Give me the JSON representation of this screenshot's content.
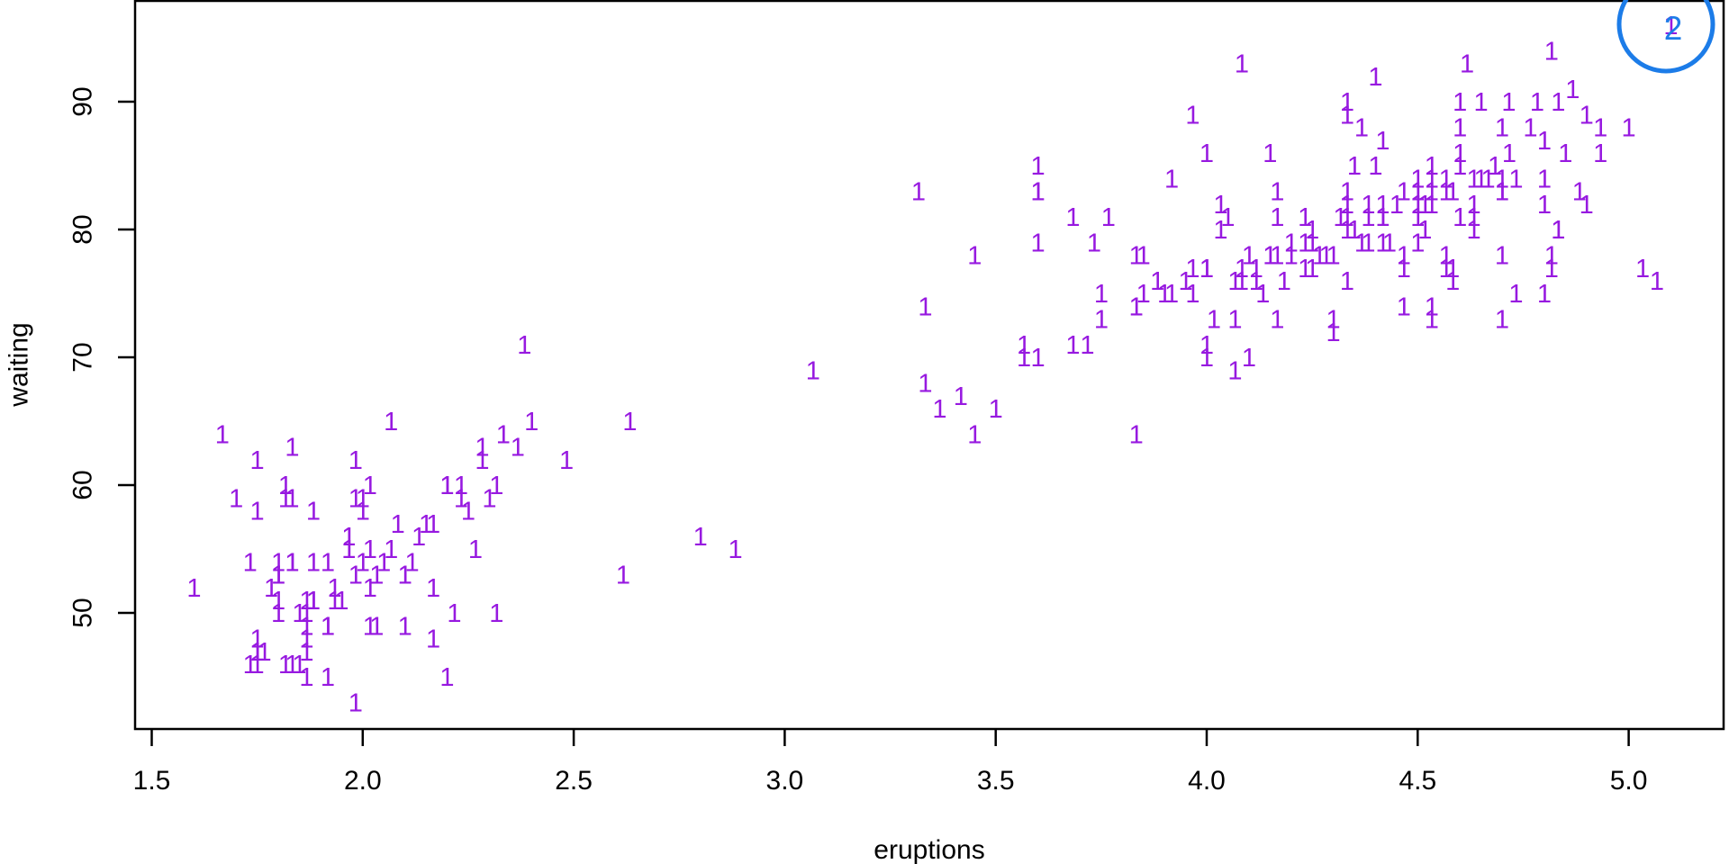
{
  "chart_data": {
    "type": "scatter",
    "title": "",
    "xlabel": "eruptions",
    "ylabel": "waiting",
    "x_ticks": [
      1.5,
      2.0,
      2.5,
      3.0,
      3.5,
      4.0,
      4.5,
      5.0
    ],
    "x_tick_labels": [
      "1.5",
      "2.0",
      "2.5",
      "3.0",
      "3.5",
      "4.0",
      "4.5",
      "5.0"
    ],
    "y_ticks": [
      50,
      60,
      70,
      80,
      90
    ],
    "y_tick_labels": [
      "50",
      "60",
      "70",
      "80",
      "90"
    ],
    "xlim": [
      1.46,
      5.23
    ],
    "ylim": [
      40.9,
      98.1
    ],
    "grid": "off",
    "legend": "none",
    "point_glyph": "1",
    "point_color": "#9719E0",
    "axis_color": "#000000",
    "points": [
      [
        3.6,
        79
      ],
      [
        1.8,
        54
      ],
      [
        3.333,
        74
      ],
      [
        2.283,
        62
      ],
      [
        4.533,
        85
      ],
      [
        2.883,
        55
      ],
      [
        4.7,
        88
      ],
      [
        3.6,
        85
      ],
      [
        1.95,
        51
      ],
      [
        4.35,
        85
      ],
      [
        1.833,
        54
      ],
      [
        3.917,
        84
      ],
      [
        4.2,
        78
      ],
      [
        1.75,
        47
      ],
      [
        4.7,
        83
      ],
      [
        2.167,
        52
      ],
      [
        1.75,
        62
      ],
      [
        4.8,
        84
      ],
      [
        1.6,
        52
      ],
      [
        4.25,
        79
      ],
      [
        1.8,
        51
      ],
      [
        1.75,
        47
      ],
      [
        3.45,
        78
      ],
      [
        3.067,
        69
      ],
      [
        4.533,
        74
      ],
      [
        3.6,
        83
      ],
      [
        1.967,
        55
      ],
      [
        4.083,
        76
      ],
      [
        3.85,
        78
      ],
      [
        4.433,
        79
      ],
      [
        4.3,
        73
      ],
      [
        4.467,
        77
      ],
      [
        3.367,
        66
      ],
      [
        4.033,
        80
      ],
      [
        3.833,
        74
      ],
      [
        2.017,
        52
      ],
      [
        1.867,
        48
      ],
      [
        4.833,
        80
      ],
      [
        1.833,
        59
      ],
      [
        4.783,
        90
      ],
      [
        4.35,
        80
      ],
      [
        1.883,
        58
      ],
      [
        4.567,
        84
      ],
      [
        1.75,
        58
      ],
      [
        4.533,
        73
      ],
      [
        3.317,
        83
      ],
      [
        3.833,
        64
      ],
      [
        2.1,
        53
      ],
      [
        4.633,
        82
      ],
      [
        2.0,
        59
      ],
      [
        4.8,
        75
      ],
      [
        4.716,
        90
      ],
      [
        1.833,
        54
      ],
      [
        4.833,
        80
      ],
      [
        1.733,
        54
      ],
      [
        4.883,
        83
      ],
      [
        3.717,
        71
      ],
      [
        1.667,
        64
      ],
      [
        4.567,
        77
      ],
      [
        4.317,
        81
      ],
      [
        2.233,
        59
      ],
      [
        4.5,
        84
      ],
      [
        1.75,
        48
      ],
      [
        4.8,
        82
      ],
      [
        1.817,
        60
      ],
      [
        4.4,
        92
      ],
      [
        4.167,
        78
      ],
      [
        4.7,
        78
      ],
      [
        2.067,
        65
      ],
      [
        4.7,
        73
      ],
      [
        4.033,
        82
      ],
      [
        1.967,
        56
      ],
      [
        4.5,
        79
      ],
      [
        4.0,
        71
      ],
      [
        1.983,
        62
      ],
      [
        5.067,
        76
      ],
      [
        2.017,
        60
      ],
      [
        4.567,
        78
      ],
      [
        3.883,
        76
      ],
      [
        3.6,
        83
      ],
      [
        4.133,
        75
      ],
      [
        4.333,
        82
      ],
      [
        4.1,
        70
      ],
      [
        2.633,
        65
      ],
      [
        4.067,
        73
      ],
      [
        4.933,
        88
      ],
      [
        3.95,
        76
      ],
      [
        4.517,
        80
      ],
      [
        2.167,
        48
      ],
      [
        4.0,
        86
      ],
      [
        2.2,
        60
      ],
      [
        4.333,
        90
      ],
      [
        1.867,
        50
      ],
      [
        4.817,
        78
      ],
      [
        1.833,
        63
      ],
      [
        4.3,
        72
      ],
      [
        4.667,
        84
      ],
      [
        3.75,
        75
      ],
      [
        1.867,
        51
      ],
      [
        4.9,
        82
      ],
      [
        2.483,
        62
      ],
      [
        4.367,
        88
      ],
      [
        2.1,
        49
      ],
      [
        4.5,
        83
      ],
      [
        4.05,
        81
      ],
      [
        1.867,
        47
      ],
      [
        4.7,
        84
      ],
      [
        1.783,
        52
      ],
      [
        4.85,
        86
      ],
      [
        3.683,
        81
      ],
      [
        4.733,
        75
      ],
      [
        2.3,
        59
      ],
      [
        4.9,
        89
      ],
      [
        4.417,
        79
      ],
      [
        1.7,
        59
      ],
      [
        4.633,
        81
      ],
      [
        2.317,
        50
      ],
      [
        4.6,
        85
      ],
      [
        1.817,
        59
      ],
      [
        4.417,
        87
      ],
      [
        2.617,
        53
      ],
      [
        4.067,
        69
      ],
      [
        4.25,
        77
      ],
      [
        1.967,
        56
      ],
      [
        4.6,
        88
      ],
      [
        3.767,
        81
      ],
      [
        1.917,
        45
      ],
      [
        4.5,
        82
      ],
      [
        2.267,
        55
      ],
      [
        4.65,
        90
      ],
      [
        1.867,
        45
      ],
      [
        4.167,
        83
      ],
      [
        2.8,
        56
      ],
      [
        4.333,
        89
      ],
      [
        1.833,
        46
      ],
      [
        4.383,
        82
      ],
      [
        1.883,
        51
      ],
      [
        4.933,
        86
      ],
      [
        2.033,
        53
      ],
      [
        3.733,
        79
      ],
      [
        4.233,
        81
      ],
      [
        2.233,
        60
      ],
      [
        4.533,
        82
      ],
      [
        4.817,
        77
      ],
      [
        4.333,
        76
      ],
      [
        1.983,
        59
      ],
      [
        4.633,
        80
      ],
      [
        2.017,
        49
      ],
      [
        5.1,
        96
      ],
      [
        1.8,
        53
      ],
      [
        5.033,
        77
      ],
      [
        4.0,
        77
      ],
      [
        2.4,
        65
      ],
      [
        4.6,
        81
      ],
      [
        3.567,
        71
      ],
      [
        4.0,
        70
      ],
      [
        4.5,
        81
      ],
      [
        4.083,
        93
      ],
      [
        1.8,
        53
      ],
      [
        3.967,
        89
      ],
      [
        2.2,
        45
      ],
      [
        4.15,
        86
      ],
      [
        2.0,
        58
      ],
      [
        3.833,
        78
      ],
      [
        3.5,
        66
      ],
      [
        4.583,
        76
      ],
      [
        2.367,
        63
      ],
      [
        5.0,
        88
      ],
      [
        1.933,
        52
      ],
      [
        4.617,
        93
      ],
      [
        1.917,
        49
      ],
      [
        2.083,
        57
      ],
      [
        4.583,
        77
      ],
      [
        3.333,
        68
      ],
      [
        4.167,
        81
      ],
      [
        4.333,
        81
      ],
      [
        4.167,
        73
      ],
      [
        2.217,
        50
      ],
      [
        4.4,
        85
      ],
      [
        1.867,
        49
      ],
      [
        2.017,
        55
      ],
      [
        4.233,
        77
      ],
      [
        4.333,
        83
      ],
      [
        4.533,
        83
      ],
      [
        1.883,
        51
      ],
      [
        4.267,
        78
      ],
      [
        4.533,
        84
      ],
      [
        1.75,
        46
      ],
      [
        4.7,
        83
      ],
      [
        2.067,
        55
      ],
      [
        4.383,
        81
      ],
      [
        2.167,
        57
      ],
      [
        4.117,
        76
      ],
      [
        4.733,
        84
      ],
      [
        4.0,
        77
      ],
      [
        4.417,
        81
      ],
      [
        4.8,
        87
      ],
      [
        3.967,
        77
      ],
      [
        1.933,
        51
      ],
      [
        4.15,
        78
      ],
      [
        2.2,
        60
      ],
      [
        4.5,
        82
      ],
      [
        4.867,
        91
      ],
      [
        1.983,
        53
      ],
      [
        4.283,
        78
      ],
      [
        1.733,
        46
      ],
      [
        4.117,
        77
      ],
      [
        4.65,
        84
      ],
      [
        1.917,
        49
      ],
      [
        4.5,
        83
      ],
      [
        2.383,
        71
      ],
      [
        4.25,
        80
      ],
      [
        2.033,
        49
      ],
      [
        3.917,
        75
      ],
      [
        3.45,
        64
      ],
      [
        4.067,
        76
      ],
      [
        2.1,
        53
      ],
      [
        4.817,
        94
      ],
      [
        1.967,
        55
      ],
      [
        4.183,
        76
      ],
      [
        1.85,
        50
      ],
      [
        4.45,
        82
      ],
      [
        2.117,
        54
      ],
      [
        3.85,
        75
      ],
      [
        4.3,
        78
      ],
      [
        4.383,
        79
      ],
      [
        4.15,
        78
      ],
      [
        4.467,
        78
      ],
      [
        3.6,
        70
      ],
      [
        4.233,
        79
      ],
      [
        3.567,
        70
      ],
      [
        1.917,
        54
      ],
      [
        4.717,
        86
      ],
      [
        1.8,
        50
      ],
      [
        4.833,
        90
      ],
      [
        2.05,
        54
      ],
      [
        1.883,
        54
      ],
      [
        4.083,
        77
      ],
      [
        4.367,
        79
      ],
      [
        2.333,
        64
      ],
      [
        3.967,
        75
      ],
      [
        1.767,
        47
      ],
      [
        4.6,
        86
      ],
      [
        2.283,
        63
      ],
      [
        4.683,
        85
      ],
      [
        4.417,
        82
      ],
      [
        2.15,
        57
      ],
      [
        4.517,
        82
      ],
      [
        3.417,
        67
      ],
      [
        3.833,
        74
      ],
      [
        2.0,
        54
      ],
      [
        4.583,
        83
      ],
      [
        3.75,
        73
      ],
      [
        4.017,
        73
      ],
      [
        4.767,
        88
      ],
      [
        4.333,
        80
      ],
      [
        3.683,
        71
      ],
      [
        4.467,
        83
      ],
      [
        2.133,
        56
      ],
      [
        4.2,
        79
      ],
      [
        4.1,
        78
      ],
      [
        4.633,
        84
      ],
      [
        2.25,
        58
      ],
      [
        4.567,
        83
      ],
      [
        1.983,
        43
      ],
      [
        2.317,
        60
      ],
      [
        3.9,
        75
      ],
      [
        4.417,
        81
      ],
      [
        1.817,
        46
      ],
      [
        4.6,
        90
      ],
      [
        1.85,
        46
      ],
      [
        4.467,
        74
      ]
    ]
  },
  "annotation": {
    "label": "2",
    "color": "#1C7CE8"
  }
}
